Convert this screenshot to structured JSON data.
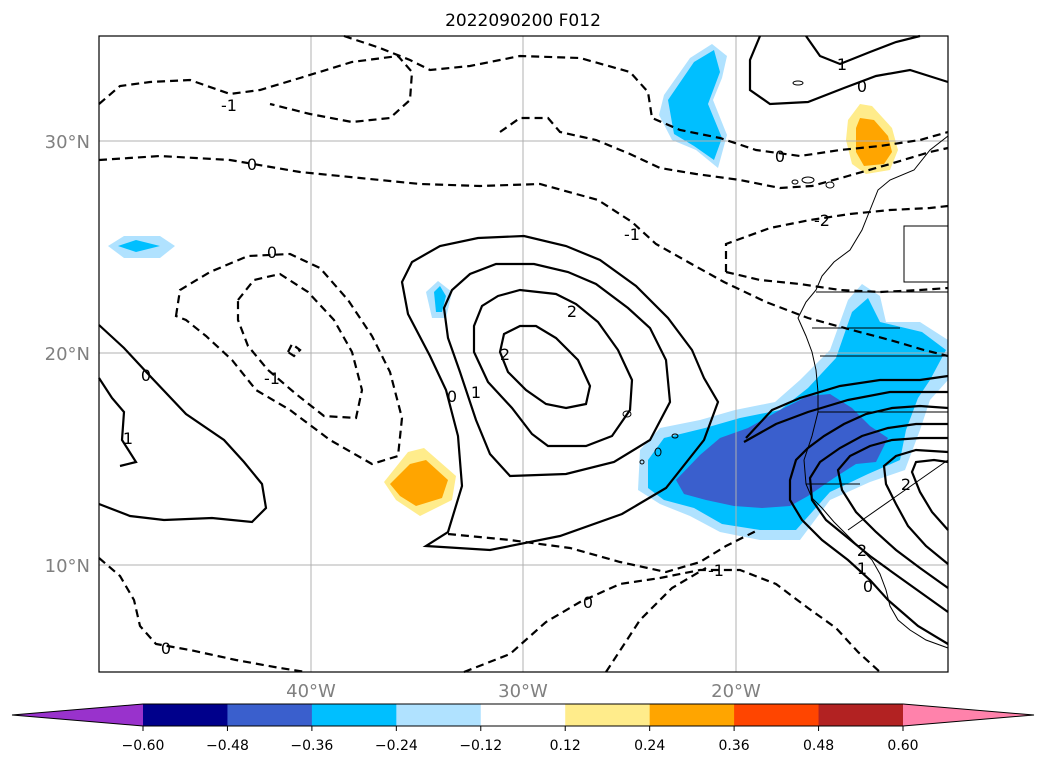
{
  "title": "2022090200 F012",
  "lat_labels": [
    "30°N",
    "20°N",
    "10°N"
  ],
  "lon_labels": [
    "40°W",
    "30°W",
    "20°W"
  ],
  "colorbar": {
    "ticks": [
      "−0.60",
      "−0.48",
      "−0.36",
      "−0.24",
      "−0.12",
      "0.12",
      "0.24",
      "0.36",
      "0.48",
      "0.60"
    ],
    "colors": [
      "#9932cc",
      "#00008b",
      "#3a5fcd",
      "#00bfff",
      "#b0e2ff",
      "#ffffff",
      "#ffec8b",
      "#ffa500",
      "#ff4500",
      "#b22222",
      "#ff82ab"
    ]
  },
  "contour_labels": [
    {
      "name": "label-neg1-top",
      "text": "-1"
    },
    {
      "name": "label-0-north",
      "text": "0"
    },
    {
      "name": "label-0-west",
      "text": "0"
    },
    {
      "name": "label-neg1-west",
      "text": "-1"
    },
    {
      "name": "label-0-sw",
      "text": "0"
    },
    {
      "name": "label-1-sw",
      "text": "1"
    },
    {
      "name": "label-2-center-a",
      "text": "2"
    },
    {
      "name": "label-2-center-b",
      "text": "2"
    },
    {
      "name": "label-0-center",
      "text": "0"
    },
    {
      "name": "label-1-center",
      "text": "1"
    },
    {
      "name": "label-neg1-mid",
      "text": "-1"
    },
    {
      "name": "label-neg2-east",
      "text": "-2"
    },
    {
      "name": "label-0-ne",
      "text": "0"
    },
    {
      "name": "label-1-ne",
      "text": "1"
    },
    {
      "name": "label-0-ne-b",
      "text": "0"
    },
    {
      "name": "label-0-south",
      "text": "0"
    },
    {
      "name": "label-neg1-south",
      "text": "-1"
    },
    {
      "name": "label-0-bottom",
      "text": "0"
    },
    {
      "name": "label-2-coast",
      "text": "2"
    },
    {
      "name": "label-1-coast",
      "text": "1"
    },
    {
      "name": "label-0-coast",
      "text": "0"
    },
    {
      "name": "label-2-africa",
      "text": "2"
    }
  ]
}
